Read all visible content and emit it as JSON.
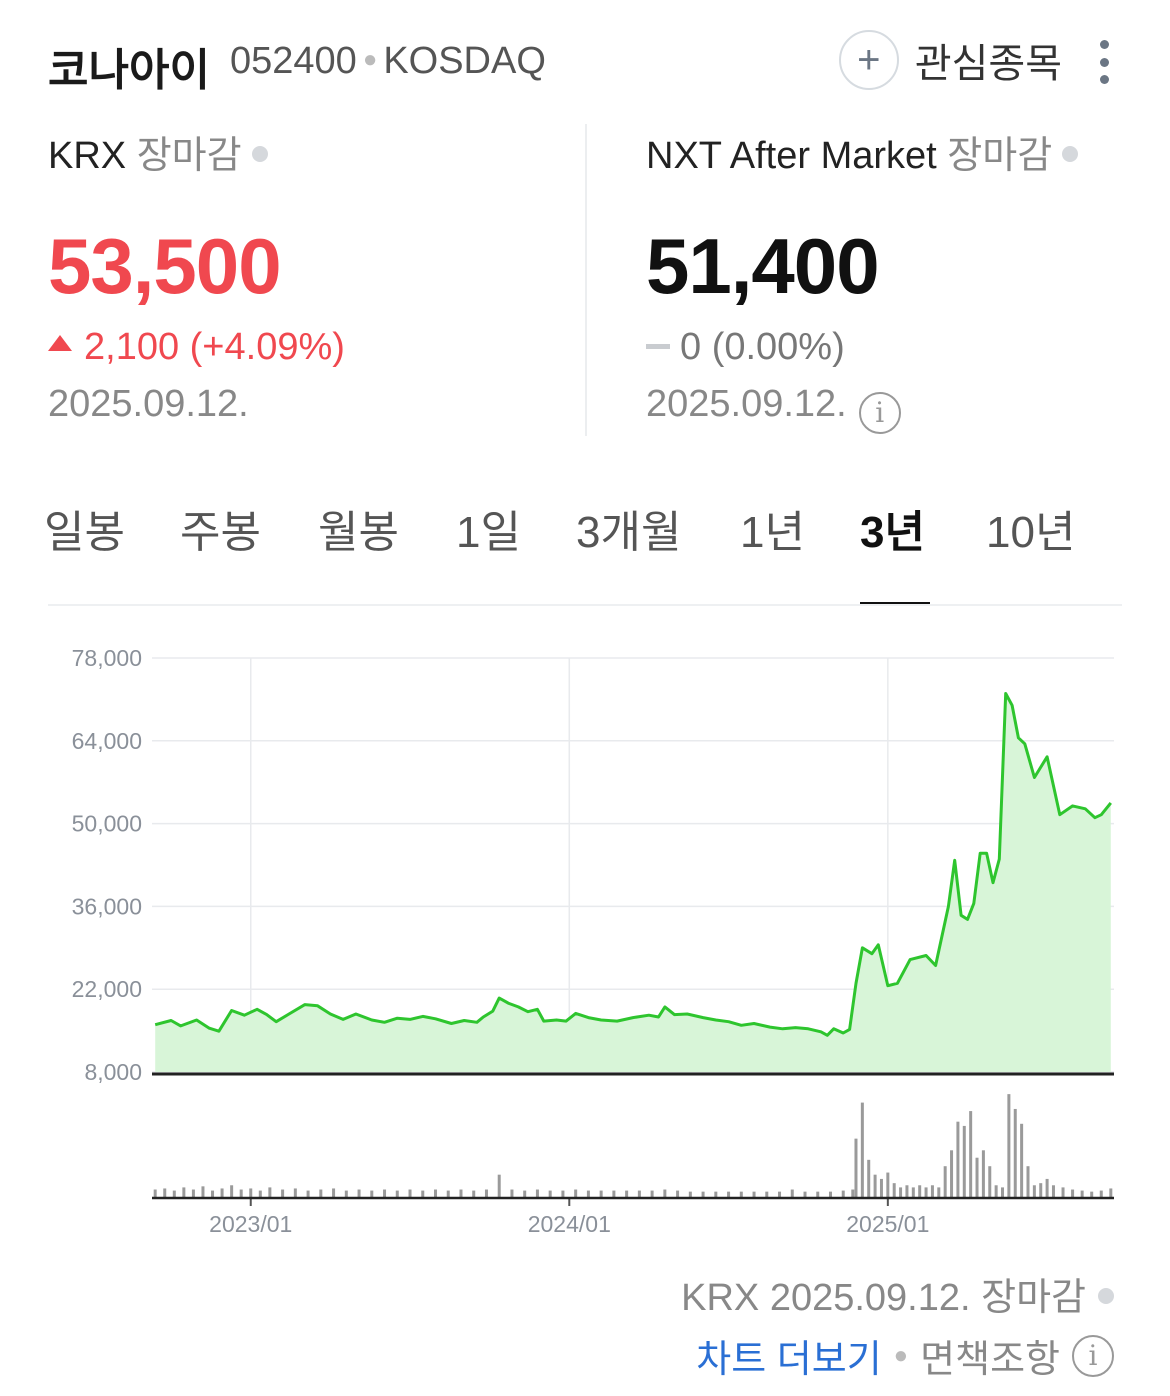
{
  "header": {
    "name": "코나아이",
    "code": "052400",
    "market": "KOSDAQ",
    "watch_label": "관심종목",
    "plus_icon": "plus-icon",
    "more_icon": "more-vertical-icon"
  },
  "krx": {
    "label": "KRX",
    "status": "장마감",
    "price": "53,500",
    "change": "2,100 (+4.09%)",
    "date": "2025.09.12.",
    "color": "#f0484f"
  },
  "nxt": {
    "label": "NXT After Market",
    "status": "장마감",
    "price": "51,400",
    "change": "0 (0.00%)",
    "date": "2025.09.12."
  },
  "tabs": [
    "일봉",
    "주봉",
    "월봉",
    "1일",
    "3개월",
    "1년",
    "3년",
    "10년"
  ],
  "active_tab": "3년",
  "footer": {
    "status": "KRX 2025.09.12. 장마감",
    "more_chart": "차트 더보기",
    "disclaimer": "면책조항"
  },
  "chart_data": {
    "type": "area",
    "line_color": "#2ec52e",
    "fill_color": "#d8f5d8",
    "volume_color": "#9a9a9a",
    "y_ticks": [
      "78,000",
      "64,000",
      "50,000",
      "36,000",
      "22,000",
      "8,000"
    ],
    "y_tick_values": [
      78000,
      64000,
      50000,
      36000,
      22000,
      8000
    ],
    "ylim": [
      8000,
      78000
    ],
    "x_ticks": [
      "2023/01",
      "2024/01",
      "2025/01"
    ],
    "x_tick_values": [
      "2023-01",
      "2024-01",
      "2025-01"
    ],
    "xlim": [
      "2022-09",
      "2025-09"
    ],
    "grid": true,
    "series": [
      {
        "values": [
          [
            2022.7,
            16000
          ],
          [
            2022.75,
            16700
          ],
          [
            2022.78,
            15800
          ],
          [
            2022.83,
            16800
          ],
          [
            2022.87,
            15400
          ],
          [
            2022.9,
            14900
          ],
          [
            2022.94,
            18400
          ],
          [
            2022.98,
            17600
          ],
          [
            2023.02,
            18600
          ],
          [
            2023.05,
            17700
          ],
          [
            2023.08,
            16500
          ],
          [
            2023.12,
            17800
          ],
          [
            2023.17,
            19400
          ],
          [
            2023.21,
            19200
          ],
          [
            2023.25,
            17800
          ],
          [
            2023.29,
            16900
          ],
          [
            2023.33,
            17800
          ],
          [
            2023.38,
            16800
          ],
          [
            2023.42,
            16400
          ],
          [
            2023.46,
            17100
          ],
          [
            2023.5,
            16900
          ],
          [
            2023.54,
            17400
          ],
          [
            2023.58,
            17000
          ],
          [
            2023.63,
            16200
          ],
          [
            2023.67,
            16700
          ],
          [
            2023.71,
            16400
          ],
          [
            2023.73,
            17300
          ],
          [
            2023.76,
            18300
          ],
          [
            2023.78,
            20500
          ],
          [
            2023.81,
            19600
          ],
          [
            2023.84,
            19000
          ],
          [
            2023.87,
            18200
          ],
          [
            2023.9,
            18600
          ],
          [
            2023.92,
            16600
          ],
          [
            2023.96,
            16800
          ],
          [
            2023.99,
            16600
          ],
          [
            2024.02,
            17900
          ],
          [
            2024.06,
            17200
          ],
          [
            2024.1,
            16800
          ],
          [
            2024.15,
            16600
          ],
          [
            2024.2,
            17200
          ],
          [
            2024.25,
            17600
          ],
          [
            2024.28,
            17300
          ],
          [
            2024.3,
            19000
          ],
          [
            2024.33,
            17700
          ],
          [
            2024.37,
            17800
          ],
          [
            2024.42,
            17200
          ],
          [
            2024.46,
            16800
          ],
          [
            2024.5,
            16500
          ],
          [
            2024.54,
            15900
          ],
          [
            2024.58,
            16200
          ],
          [
            2024.63,
            15600
          ],
          [
            2024.67,
            15300
          ],
          [
            2024.71,
            15500
          ],
          [
            2024.75,
            15300
          ],
          [
            2024.79,
            14800
          ],
          [
            2024.81,
            14200
          ],
          [
            2024.83,
            15300
          ],
          [
            2024.86,
            14600
          ],
          [
            2024.88,
            15200
          ],
          [
            2024.9,
            23000
          ],
          [
            2024.92,
            29000
          ],
          [
            2024.95,
            28000
          ],
          [
            2024.97,
            29500
          ],
          [
            2025.0,
            22600
          ],
          [
            2025.03,
            23000
          ],
          [
            2025.07,
            27000
          ],
          [
            2025.12,
            27700
          ],
          [
            2025.15,
            26000
          ],
          [
            2025.19,
            36000
          ],
          [
            2025.21,
            43800
          ],
          [
            2025.23,
            34500
          ],
          [
            2025.25,
            33800
          ],
          [
            2025.27,
            36500
          ],
          [
            2025.29,
            45000
          ],
          [
            2025.31,
            45000
          ],
          [
            2025.33,
            40000
          ],
          [
            2025.35,
            44000
          ],
          [
            2025.37,
            72000
          ],
          [
            2025.39,
            70000
          ],
          [
            2025.41,
            64500
          ],
          [
            2025.43,
            63500
          ],
          [
            2025.46,
            57800
          ],
          [
            2025.5,
            61300
          ],
          [
            2025.54,
            51500
          ],
          [
            2025.58,
            53000
          ],
          [
            2025.62,
            52500
          ],
          [
            2025.65,
            51000
          ],
          [
            2025.67,
            51500
          ],
          [
            2025.7,
            53500
          ]
        ]
      }
    ],
    "volume": [
      [
        2022.7,
        8
      ],
      [
        2022.73,
        9
      ],
      [
        2022.76,
        7
      ],
      [
        2022.79,
        10
      ],
      [
        2022.82,
        8
      ],
      [
        2022.85,
        11
      ],
      [
        2022.88,
        7
      ],
      [
        2022.91,
        9
      ],
      [
        2022.94,
        12
      ],
      [
        2022.97,
        8
      ],
      [
        2023.0,
        9
      ],
      [
        2023.03,
        7
      ],
      [
        2023.06,
        10
      ],
      [
        2023.1,
        8
      ],
      [
        2023.14,
        9
      ],
      [
        2023.18,
        7
      ],
      [
        2023.22,
        8
      ],
      [
        2023.26,
        9
      ],
      [
        2023.3,
        7
      ],
      [
        2023.34,
        8
      ],
      [
        2023.38,
        7
      ],
      [
        2023.42,
        8
      ],
      [
        2023.46,
        7
      ],
      [
        2023.5,
        8
      ],
      [
        2023.54,
        7
      ],
      [
        2023.58,
        8
      ],
      [
        2023.62,
        7
      ],
      [
        2023.66,
        8
      ],
      [
        2023.7,
        7
      ],
      [
        2023.74,
        8
      ],
      [
        2023.78,
        22
      ],
      [
        2023.82,
        8
      ],
      [
        2023.86,
        7
      ],
      [
        2023.9,
        8
      ],
      [
        2023.94,
        7
      ],
      [
        2023.98,
        7
      ],
      [
        2024.02,
        8
      ],
      [
        2024.06,
        7
      ],
      [
        2024.1,
        7
      ],
      [
        2024.14,
        7
      ],
      [
        2024.18,
        7
      ],
      [
        2024.22,
        7
      ],
      [
        2024.26,
        7
      ],
      [
        2024.3,
        8
      ],
      [
        2024.34,
        7
      ],
      [
        2024.38,
        6
      ],
      [
        2024.42,
        6
      ],
      [
        2024.46,
        6
      ],
      [
        2024.5,
        6
      ],
      [
        2024.54,
        6
      ],
      [
        2024.58,
        6
      ],
      [
        2024.62,
        6
      ],
      [
        2024.66,
        6
      ],
      [
        2024.7,
        8
      ],
      [
        2024.74,
        6
      ],
      [
        2024.78,
        6
      ],
      [
        2024.82,
        6
      ],
      [
        2024.86,
        7
      ],
      [
        2024.89,
        8
      ],
      [
        2024.9,
        56
      ],
      [
        2024.92,
        90
      ],
      [
        2024.94,
        36
      ],
      [
        2024.96,
        22
      ],
      [
        2024.98,
        18
      ],
      [
        2025.0,
        24
      ],
      [
        2025.02,
        14
      ],
      [
        2025.04,
        10
      ],
      [
        2025.06,
        12
      ],
      [
        2025.08,
        10
      ],
      [
        2025.1,
        12
      ],
      [
        2025.12,
        10
      ],
      [
        2025.14,
        12
      ],
      [
        2025.16,
        10
      ],
      [
        2025.18,
        30
      ],
      [
        2025.2,
        45
      ],
      [
        2025.22,
        72
      ],
      [
        2025.24,
        68
      ],
      [
        2025.26,
        82
      ],
      [
        2025.28,
        38
      ],
      [
        2025.3,
        45
      ],
      [
        2025.32,
        30
      ],
      [
        2025.34,
        12
      ],
      [
        2025.36,
        10
      ],
      [
        2025.38,
        98
      ],
      [
        2025.4,
        84
      ],
      [
        2025.42,
        70
      ],
      [
        2025.44,
        30
      ],
      [
        2025.46,
        12
      ],
      [
        2025.48,
        14
      ],
      [
        2025.5,
        18
      ],
      [
        2025.52,
        12
      ],
      [
        2025.55,
        10
      ],
      [
        2025.58,
        8
      ],
      [
        2025.61,
        7
      ],
      [
        2025.64,
        6
      ],
      [
        2025.67,
        7
      ],
      [
        2025.7,
        9
      ]
    ]
  }
}
